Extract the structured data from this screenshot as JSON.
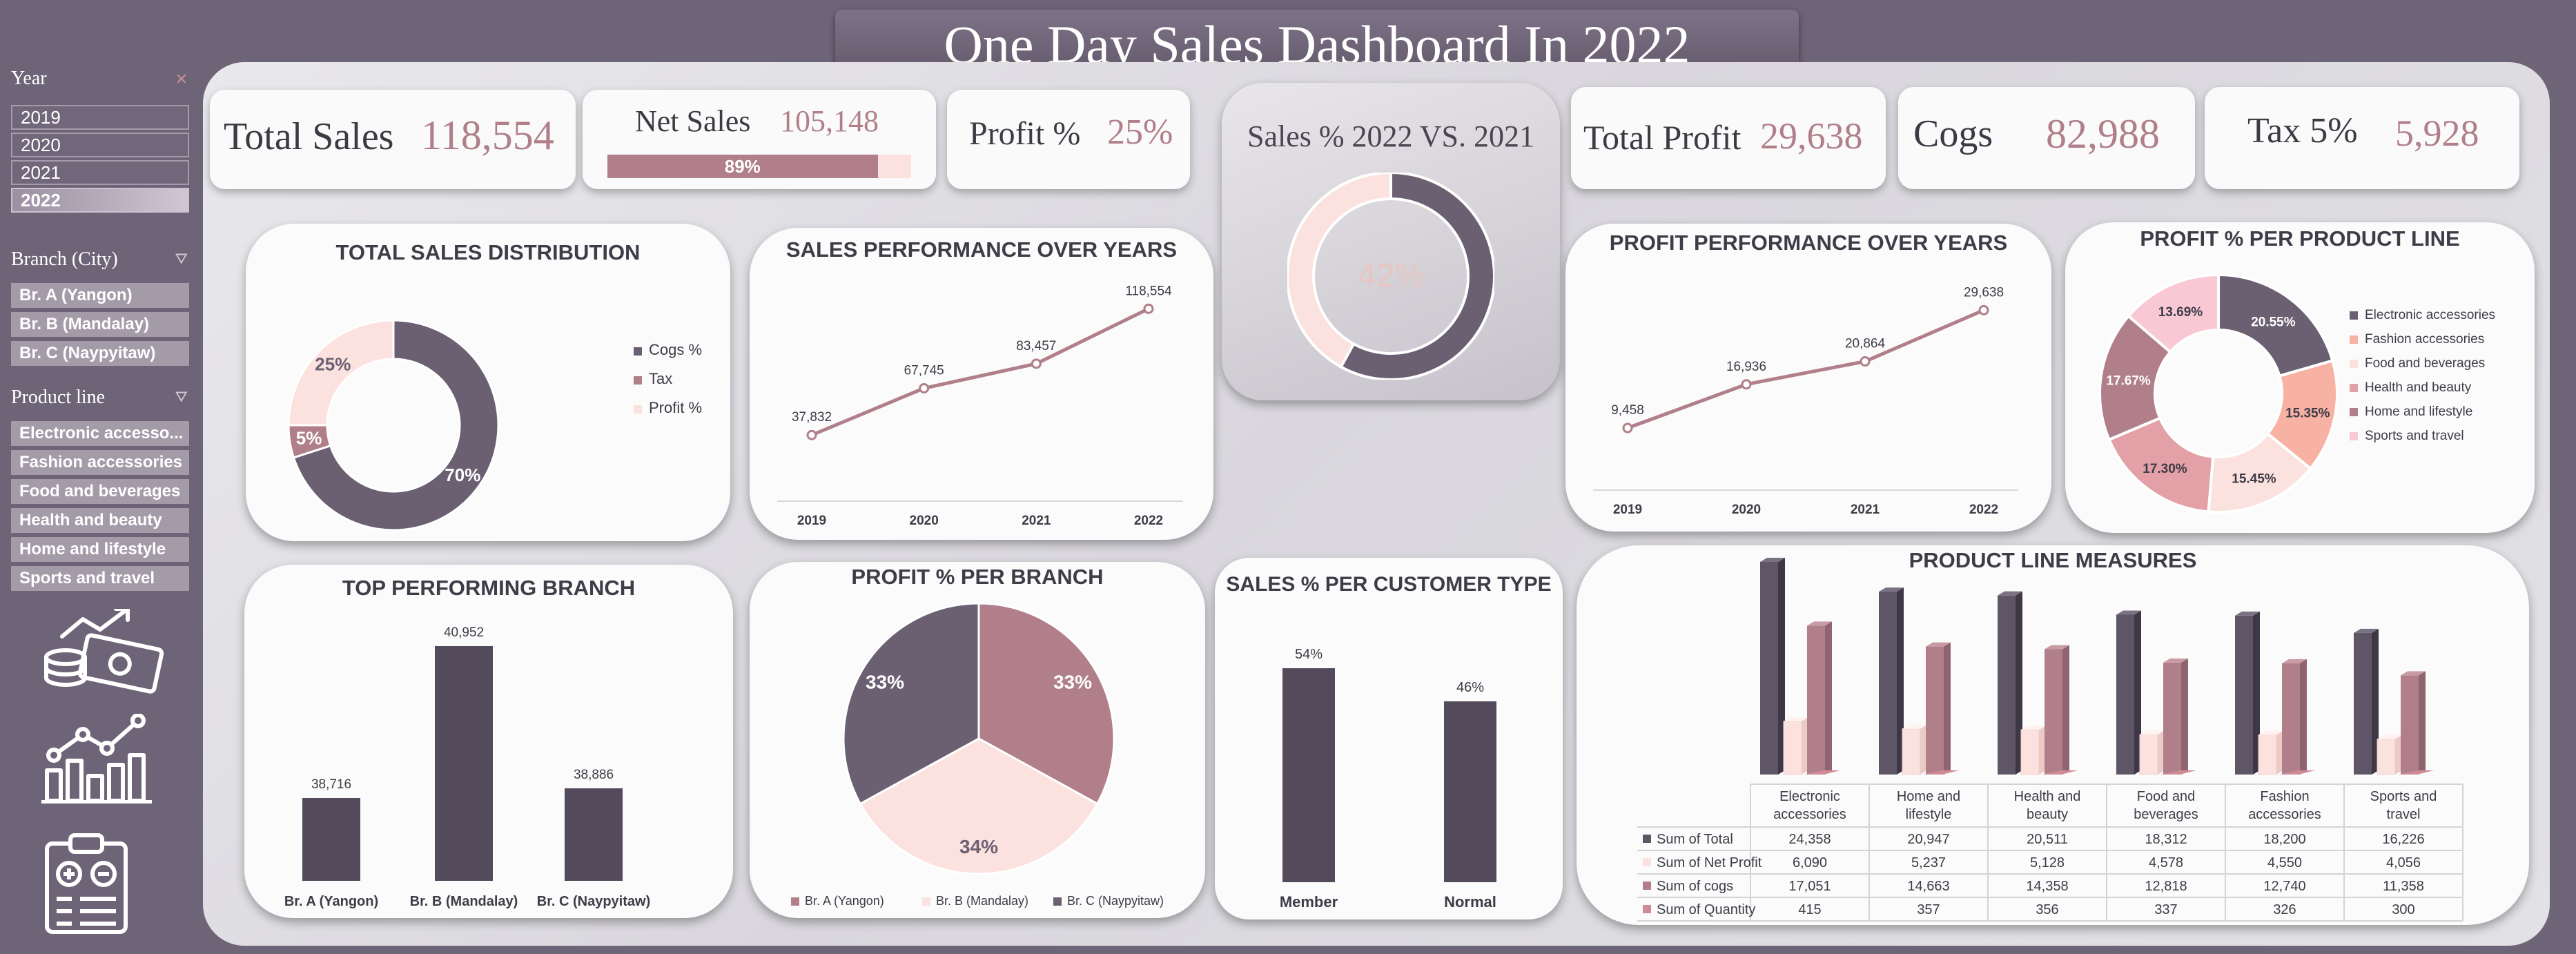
{
  "title": "One Day Sales Dashboard In 2022",
  "sidebar": {
    "year": {
      "label": "Year",
      "items": [
        "2019",
        "2020",
        "2021",
        "2022"
      ],
      "selected": "2022"
    },
    "branch": {
      "label": "Branch (City)",
      "items": [
        "Br. A (Yangon)",
        "Br. B (Mandalay)",
        "Br. C (Naypyitaw)"
      ]
    },
    "product_line": {
      "label": "Product line",
      "items": [
        "Electronic accesso...",
        "Fashion accessories",
        "Food and beverages",
        "Health and beauty",
        "Home and lifestyle",
        "Sports and travel"
      ]
    }
  },
  "kpis": {
    "total_sales": {
      "label": "Total Sales",
      "value": "118,554"
    },
    "net_sales": {
      "label": "Net Sales",
      "value": "105,148",
      "bar_label": "89%",
      "bar_fraction": 0.89
    },
    "profit_pct": {
      "label": "Profit %",
      "value": "25%"
    },
    "total_profit": {
      "label": "Total Profit",
      "value": "29,638"
    },
    "cogs": {
      "label": "Cogs",
      "value": "82,988"
    },
    "tax": {
      "label": "Tax 5%",
      "value": "5,928"
    }
  },
  "colors": {
    "dark": "#6a6072",
    "mauve": "#b07f8a",
    "pink": "#fbe2de",
    "salmon": "#f8b2a4",
    "rose": "#e3a0a6",
    "light_pink": "#f8c8d4"
  },
  "chart_data": [
    {
      "id": "sales_vs_2021",
      "type": "pie",
      "title": "Sales % 2022 VS. 2021",
      "center_label": "42%",
      "slices": [
        {
          "name": "",
          "value": 58,
          "color": "#6a6072"
        },
        {
          "name": "",
          "value": 42,
          "color": "#fbe2de"
        }
      ]
    },
    {
      "id": "total_sales_distribution",
      "type": "pie",
      "title": "TOTAL SALES DISTRIBUTION",
      "slices": [
        {
          "name": "Cogs %",
          "value": 70,
          "label": "70%",
          "color": "#6a6072"
        },
        {
          "name": "Tax",
          "value": 5,
          "label": "5%",
          "color": "#b07f8a"
        },
        {
          "name": "Profit %",
          "value": 25,
          "label": "25%",
          "color": "#fbe2de"
        }
      ],
      "legend": "right"
    },
    {
      "id": "sales_performance",
      "type": "line",
      "title": "SALES PERFORMANCE OVER YEARS",
      "categories": [
        "2019",
        "2020",
        "2021",
        "2022"
      ],
      "values": [
        37832,
        67745,
        83457,
        118554
      ],
      "labels": [
        "37,832",
        "67,745",
        "83,457",
        "118,554"
      ],
      "ylim": [
        0,
        135000
      ]
    },
    {
      "id": "profit_performance",
      "type": "line",
      "title": "PROFIT PERFORMANCE OVER YEARS",
      "categories": [
        "2019",
        "2020",
        "2021",
        "2022"
      ],
      "values": [
        9458,
        16936,
        20864,
        29638
      ],
      "labels": [
        "9,458",
        "16,936",
        "20,864",
        "29,638"
      ],
      "ylim": [
        0,
        35000
      ]
    },
    {
      "id": "profit_per_product_line",
      "type": "pie",
      "title": "PROFIT % PER PRODUCT LINE",
      "slices": [
        {
          "name": "Electronic accessories",
          "value": 20.55,
          "label": "20.55%",
          "color": "#6a6072"
        },
        {
          "name": "Fashion accessories",
          "value": 15.35,
          "label": "15.35%",
          "color": "#f8b2a4"
        },
        {
          "name": "Food and beverages",
          "value": 15.45,
          "label": "15.45%",
          "color": "#fbe2de"
        },
        {
          "name": "Health and beauty",
          "value": 17.3,
          "label": "17.30%",
          "color": "#e3a0a6"
        },
        {
          "name": "Home and lifestyle",
          "value": 17.67,
          "label": "17.67%",
          "color": "#b07f8a"
        },
        {
          "name": "Sports and travel",
          "value": 13.69,
          "label": "13.69%",
          "color": "#f8c8d4"
        }
      ],
      "legend": "right"
    },
    {
      "id": "top_performing_branch",
      "type": "bar",
      "title": "TOP PERFORMING BRANCH",
      "categories": [
        "Br. A (Yangon)",
        "Br. B (Mandalay)",
        "Br. C (Naypyitaw)"
      ],
      "values": [
        38716,
        40952,
        38886
      ],
      "labels": [
        "38,716",
        "40,952",
        "38,886"
      ]
    },
    {
      "id": "profit_per_branch",
      "type": "pie",
      "title": "PROFIT % PER BRANCH",
      "slices": [
        {
          "name": "Br. A (Yangon)",
          "value": 33,
          "label": "33%",
          "color": "#b07f8a"
        },
        {
          "name": "Br. B (Mandalay)",
          "value": 34,
          "label": "34%",
          "color": "#fbe2de"
        },
        {
          "name": "Br. C (Naypyitaw)",
          "value": 33,
          "label": "33%",
          "color": "#6a6072"
        }
      ],
      "legend": "bottom"
    },
    {
      "id": "sales_per_customer_type",
      "type": "bar",
      "title": "SALES % PER CUSTOMER TYPE",
      "categories": [
        "Member",
        "Normal"
      ],
      "values": [
        54,
        46
      ],
      "labels": [
        "54%",
        "46%"
      ]
    },
    {
      "id": "product_line_measures",
      "type": "bar",
      "title": "PRODUCT LINE MEASURES",
      "categories": [
        "Electronic accessories",
        "Home and lifestyle",
        "Health and beauty",
        "Food and beverages",
        "Fashion accessories",
        "Sports and travel"
      ],
      "category_lines": [
        [
          "Electronic",
          "accessories"
        ],
        [
          "Home and",
          "lifestyle"
        ],
        [
          "Health and",
          "beauty"
        ],
        [
          "Food and",
          "beverages"
        ],
        [
          "Fashion",
          "accessories"
        ],
        [
          "Sports and",
          "travel"
        ]
      ],
      "series": [
        {
          "name": "Sum of Total",
          "values": [
            24358,
            20947,
            20511,
            18312,
            18200,
            16226
          ],
          "labels": [
            "24,358",
            "20,947",
            "20,511",
            "18,312",
            "18,200",
            "16,226"
          ],
          "color": "#5e5566"
        },
        {
          "name": "Sum of Net Profit",
          "values": [
            6090,
            5237,
            5128,
            4578,
            4550,
            4056
          ],
          "labels": [
            "6,090",
            "5,237",
            "5,128",
            "4,578",
            "4,550",
            "4,056"
          ],
          "color": "#fbe2de"
        },
        {
          "name": "Sum of cogs",
          "values": [
            17051,
            14663,
            14358,
            12818,
            12740,
            11358
          ],
          "labels": [
            "17,051",
            "14,663",
            "14,358",
            "12,818",
            "12,740",
            "11,358"
          ],
          "color": "#b07f8a"
        },
        {
          "name": "Sum of Quantity",
          "values": [
            415,
            357,
            356,
            337,
            326,
            300
          ],
          "labels": [
            "415",
            "357",
            "356",
            "337",
            "326",
            "300"
          ],
          "color": "#d08a96"
        }
      ]
    }
  ]
}
